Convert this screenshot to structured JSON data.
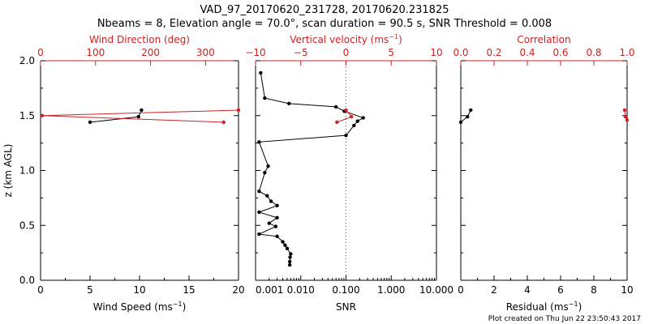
{
  "title_line1": "VAD_97_20170620_231728, 20170620.231825",
  "title_line2": "Nbeams = 8, Elevation angle = 70.0°, scan duration = 90.5 s, SNR Threshold = 0.008",
  "footer": "Plot created on Thu Jun 22 23:50:43 2017",
  "colors": {
    "primary": "#000000",
    "secondary": "#cc2222"
  },
  "chart_data": [
    {
      "type": "line",
      "name": "wind",
      "ylabel": "z (km AGL)",
      "ylim": [
        0,
        2.0
      ],
      "yticks": [
        "0.0",
        "0.5",
        "1.0",
        "1.5",
        "2.0"
      ],
      "bottom_axis": {
        "label": "Wind Speed (ms",
        "label_sup": "−1",
        "label_end": ")",
        "range": [
          0,
          20
        ],
        "ticks": [
          "0",
          "5",
          "10",
          "15",
          "20"
        ]
      },
      "top_axis": {
        "label": "Wind Direction (deg)",
        "range": [
          0,
          360
        ],
        "ticks": [
          "0",
          "100",
          "200",
          "300"
        ]
      },
      "series": [
        {
          "name": "Wind Speed",
          "axis": "bottom",
          "color": "#000000",
          "points": [
            [
              5.0,
              1.44
            ],
            [
              9.9,
              1.49
            ],
            [
              10.2,
              1.55
            ]
          ]
        },
        {
          "name": "Wind Direction",
          "axis": "top",
          "color": "#cc2222",
          "points": [
            [
              333,
              1.44
            ],
            [
              3,
              1.5
            ],
            [
              360,
              1.55
            ]
          ]
        }
      ]
    },
    {
      "type": "line",
      "name": "snr",
      "ylim": [
        0,
        2.0
      ],
      "bottom_axis": {
        "label": "SNR",
        "scale": "log",
        "range": [
          0.001,
          10
        ],
        "ticks": [
          "0.001",
          "0.010",
          "0.100",
          "1.000",
          "10.000"
        ]
      },
      "top_axis": {
        "label": "Vertical velocity (ms",
        "label_sup": "−1",
        "label_end": ")",
        "range": [
          -10,
          10
        ],
        "ticks": [
          "−10",
          "−5",
          "0",
          "5",
          "10"
        ]
      },
      "reference_line": {
        "axis": "top",
        "value": 0
      },
      "series": [
        {
          "name": "SNR",
          "axis": "bottom",
          "color": "#000000",
          "points": [
            [
              0.0013,
              1.89
            ],
            [
              0.0016,
              1.66
            ],
            [
              0.0055,
              1.61
            ],
            [
              0.06,
              1.58
            ],
            [
              0.092,
              1.54
            ],
            [
              0.24,
              1.48
            ],
            [
              0.18,
              1.45
            ],
            [
              0.15,
              1.41
            ],
            [
              0.1,
              1.32
            ],
            [
              0.0012,
              1.26
            ],
            [
              0.0019,
              1.04
            ],
            [
              0.0016,
              0.98
            ],
            [
              0.0012,
              0.81
            ],
            [
              0.0018,
              0.77
            ],
            [
              0.0022,
              0.72
            ],
            [
              0.003,
              0.68
            ],
            [
              0.0012,
              0.62
            ],
            [
              0.003,
              0.57
            ],
            [
              0.002,
              0.52
            ],
            [
              0.0028,
              0.49
            ],
            [
              0.0012,
              0.42
            ],
            [
              0.003,
              0.4
            ],
            [
              0.004,
              0.35
            ],
            [
              0.0045,
              0.32
            ],
            [
              0.005,
              0.29
            ],
            [
              0.006,
              0.24
            ],
            [
              0.0058,
              0.21
            ],
            [
              0.0057,
              0.17
            ],
            [
              0.0057,
              0.14
            ]
          ]
        },
        {
          "name": "Vertical velocity",
          "axis": "top",
          "color": "#cc2222",
          "points": [
            [
              -1.0,
              1.44
            ],
            [
              0.6,
              1.49
            ],
            [
              0.0,
              1.55
            ]
          ]
        }
      ]
    },
    {
      "type": "line",
      "name": "residual",
      "ylim": [
        0,
        2.0
      ],
      "bottom_axis": {
        "label": "Residual (ms",
        "label_sup": "−1",
        "label_end": ")",
        "range": [
          0,
          10
        ],
        "ticks": [
          "0",
          "2",
          "4",
          "6",
          "8",
          "10"
        ]
      },
      "top_axis": {
        "label": "Correlation",
        "range": [
          0,
          1.0
        ],
        "ticks": [
          "0.0",
          "0.2",
          "0.4",
          "0.6",
          "0.8",
          "1.0"
        ]
      },
      "series": [
        {
          "name": "Residual",
          "axis": "bottom",
          "color": "#000000",
          "points": [
            [
              0.0,
              1.44
            ],
            [
              0.4,
              1.49
            ],
            [
              0.6,
              1.55
            ]
          ]
        },
        {
          "name": "Correlation",
          "axis": "top",
          "color": "#cc2222",
          "points": [
            [
              0.985,
              1.55
            ],
            [
              0.99,
              1.49
            ],
            [
              1.0,
              1.46
            ]
          ]
        }
      ]
    }
  ]
}
